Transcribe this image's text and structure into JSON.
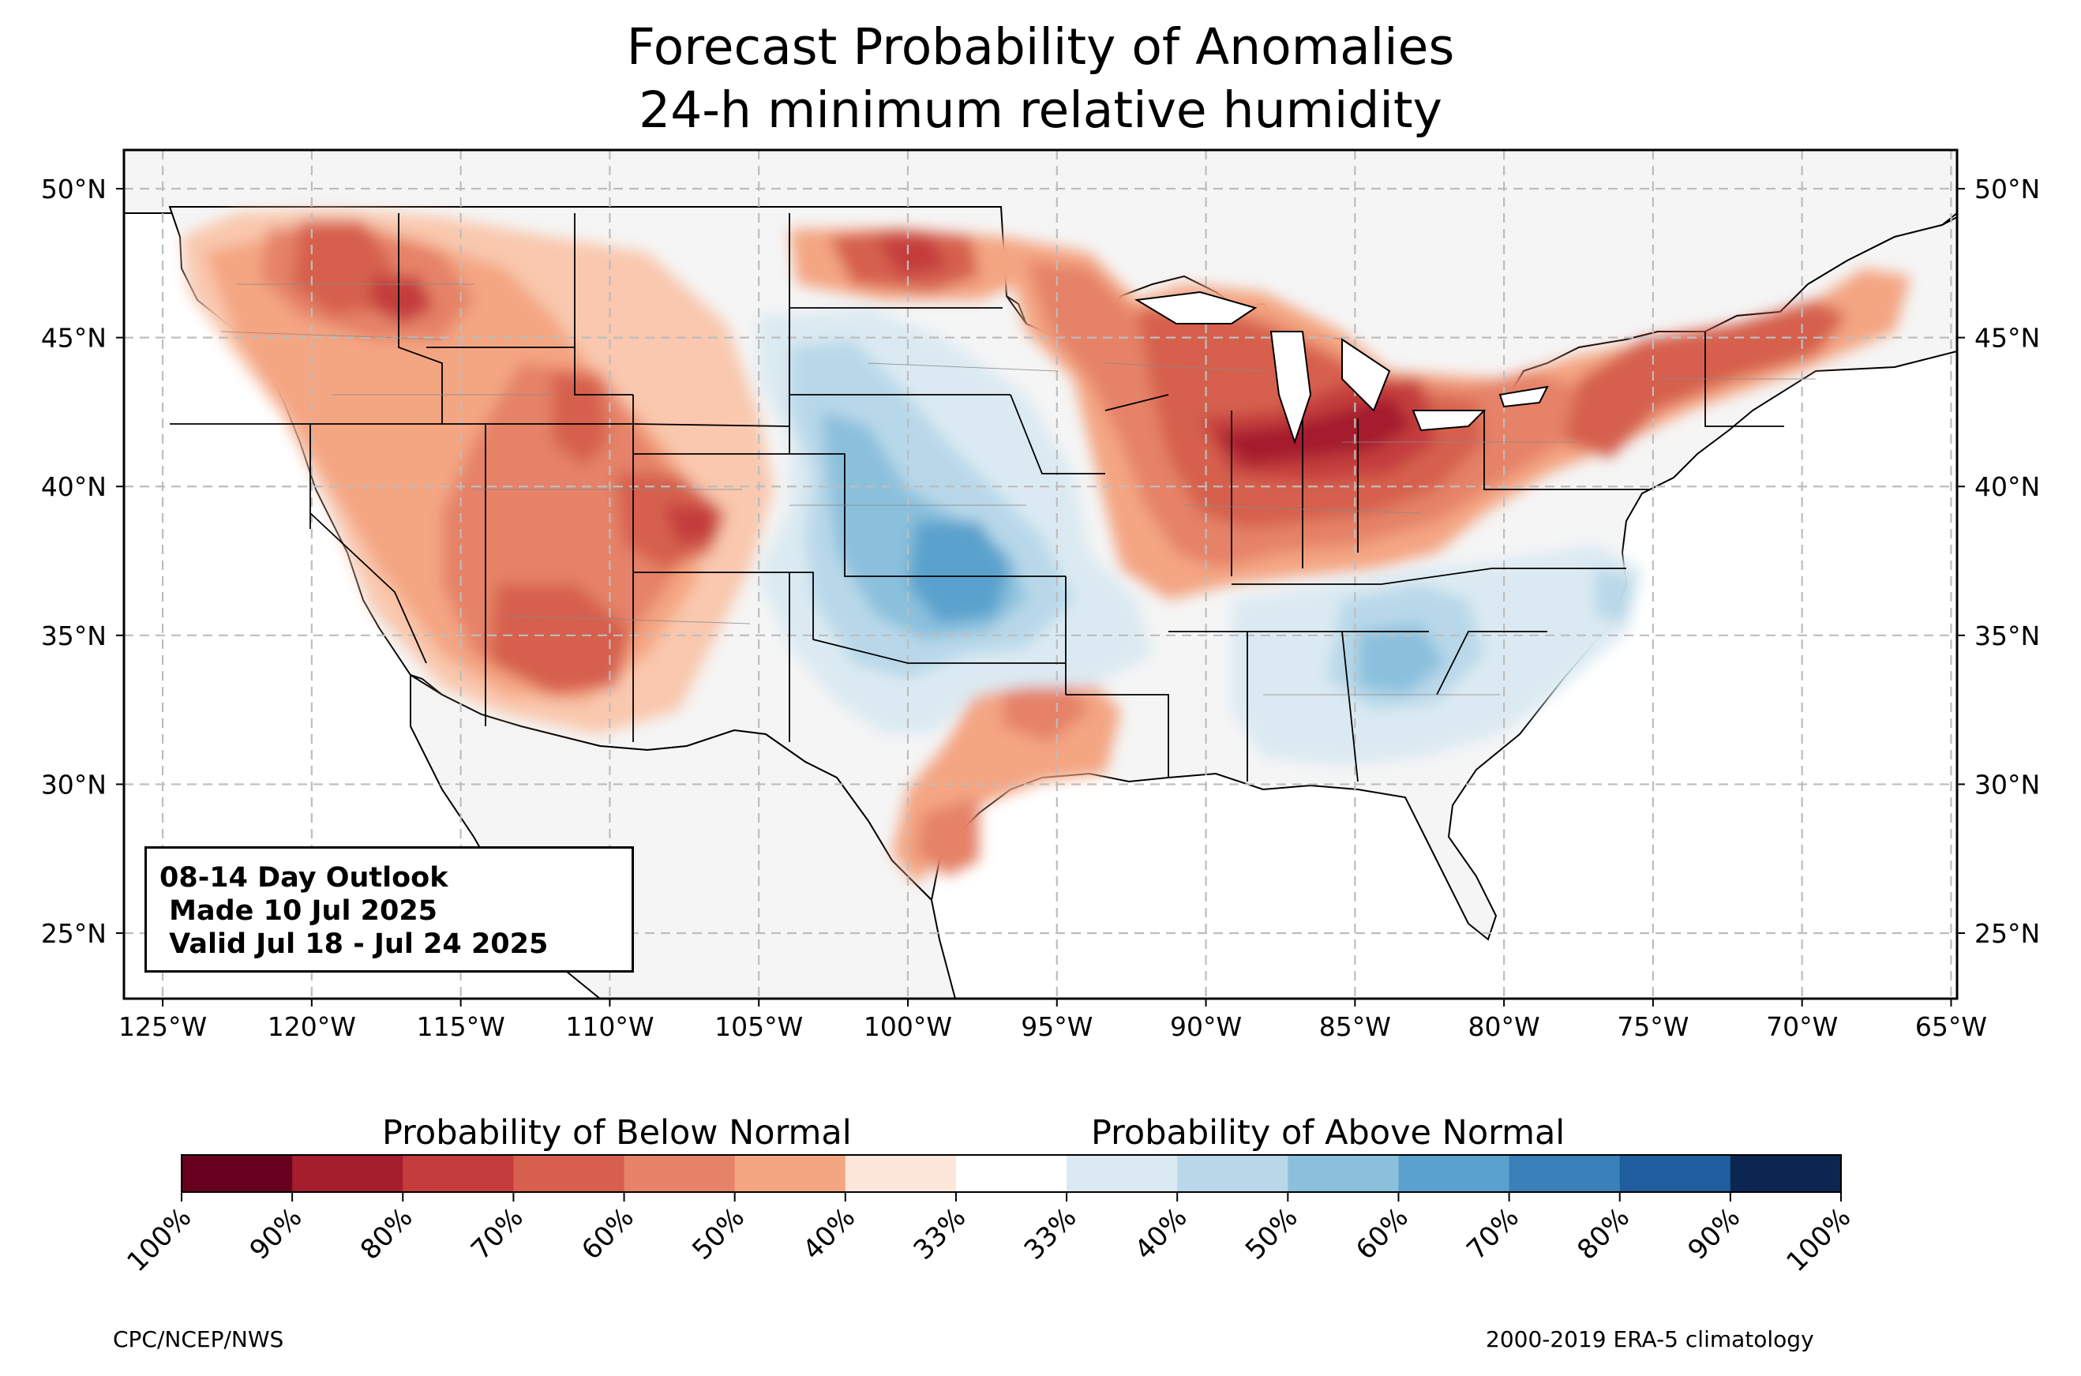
{
  "title": {
    "line1": "Forecast Probability of Anomalies",
    "line2": "24-h minimum relative humidity"
  },
  "map": {
    "lat_labels": [
      "50°N",
      "45°N",
      "40°N",
      "35°N",
      "30°N",
      "25°N"
    ],
    "lat_values": [
      50,
      45,
      40,
      35,
      30,
      25
    ],
    "lon_labels": [
      "125°W",
      "120°W",
      "115°W",
      "110°W",
      "105°W",
      "100°W",
      "95°W",
      "90°W",
      "85°W",
      "80°W",
      "75°W",
      "70°W",
      "65°W"
    ],
    "lon_values": [
      -125,
      -120,
      -115,
      -110,
      -105,
      -100,
      -95,
      -90,
      -85,
      -80,
      -75,
      -70,
      -65
    ],
    "extent": {
      "lon_min": -126.3,
      "lon_max": -64.8,
      "lat_min": 22.8,
      "lat_max": 51.3
    },
    "ocean_color": "#ffffff",
    "land_color": "#f5f5f5",
    "grid": "dashed"
  },
  "info_box": {
    "line1": "08-14 Day Outlook",
    "line2": " Made 10 Jul 2025",
    "line3": " Valid Jul 18 - Jul 24 2025"
  },
  "legend": {
    "below_title": "Probability of Below Normal",
    "above_title": "Probability of Above Normal",
    "ticks": [
      "100%",
      "90%",
      "80%",
      "70%",
      "60%",
      "50%",
      "40%",
      "33%",
      "33%",
      "40%",
      "50%",
      "60%",
      "70%",
      "80%",
      "90%",
      "100%"
    ],
    "colors": [
      "#67001f",
      "#a51e2e",
      "#c43c3c",
      "#d6604d",
      "#e58267",
      "#f4a582",
      "#f9c8ae",
      "#fde7db",
      "#ffffff",
      "#dbeaf2",
      "#b8d8e9",
      "#8bc0dd",
      "#5aa2cd",
      "#3a80b9",
      "#1f5d9e",
      "#173f75",
      "#0b2650"
    ]
  },
  "footer": {
    "left": "CPC/NCEP/NWS",
    "right": "2000-2019 ERA-5 climatology"
  }
}
